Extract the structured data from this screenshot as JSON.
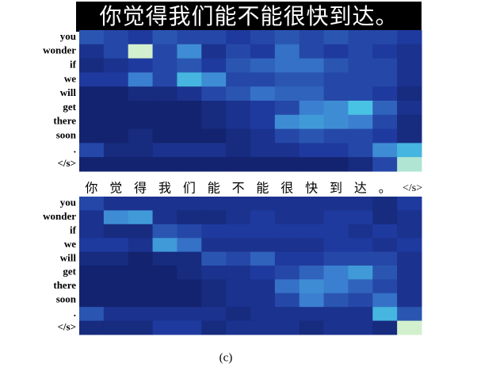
{
  "chart_data": [
    {
      "type": "heatmap",
      "title": "你觉得我们能不能很快到达。",
      "y_categories": [
        "you",
        "wonder",
        "if",
        "we",
        "will",
        "get",
        "there",
        "soon",
        ".",
        "</s>"
      ],
      "colormap": [
        "#0b1450",
        "#1f3a9e",
        "#3b7fd0",
        "#49c3e3",
        "#f4fbc8"
      ],
      "clim": [
        0,
        1
      ],
      "values": [
        [
          0.35,
          0.3,
          0.25,
          0.35,
          0.3,
          0.3,
          0.25,
          0.3,
          0.35,
          0.3,
          0.35,
          0.3,
          0.3,
          0.25
        ],
        [
          0.2,
          0.3,
          0.95,
          0.3,
          0.55,
          0.2,
          0.3,
          0.25,
          0.45,
          0.3,
          0.25,
          0.3,
          0.25,
          0.2
        ],
        [
          0.15,
          0.2,
          0.25,
          0.3,
          0.35,
          0.25,
          0.35,
          0.4,
          0.45,
          0.45,
          0.35,
          0.3,
          0.3,
          0.2
        ],
        [
          0.25,
          0.25,
          0.5,
          0.3,
          0.7,
          0.55,
          0.3,
          0.3,
          0.35,
          0.35,
          0.3,
          0.3,
          0.3,
          0.2
        ],
        [
          0.1,
          0.1,
          0.15,
          0.15,
          0.2,
          0.3,
          0.35,
          0.45,
          0.4,
          0.4,
          0.3,
          0.3,
          0.25,
          0.15
        ],
        [
          0.1,
          0.1,
          0.1,
          0.1,
          0.1,
          0.15,
          0.2,
          0.25,
          0.3,
          0.5,
          0.55,
          0.75,
          0.4,
          0.2
        ],
        [
          0.1,
          0.1,
          0.1,
          0.1,
          0.1,
          0.15,
          0.2,
          0.25,
          0.55,
          0.6,
          0.55,
          0.5,
          0.3,
          0.15
        ],
        [
          0.1,
          0.1,
          0.15,
          0.1,
          0.1,
          0.1,
          0.15,
          0.2,
          0.3,
          0.35,
          0.3,
          0.3,
          0.25,
          0.15
        ],
        [
          0.3,
          0.15,
          0.15,
          0.2,
          0.2,
          0.2,
          0.15,
          0.2,
          0.2,
          0.25,
          0.25,
          0.3,
          0.55,
          0.7
        ],
        [
          0.1,
          0.1,
          0.1,
          0.1,
          0.1,
          0.1,
          0.1,
          0.1,
          0.1,
          0.1,
          0.1,
          0.15,
          0.3,
          0.9
        ]
      ]
    },
    {
      "type": "heatmap",
      "x_categories": [
        "你",
        "觉",
        "得",
        "我",
        "们",
        "能",
        "不",
        "能",
        "很",
        "快",
        "到",
        "达",
        "。",
        "</s>"
      ],
      "y_categories": [
        "you",
        "wonder",
        "if",
        "we",
        "will",
        "get",
        "there",
        "soon",
        ".",
        "</s>"
      ],
      "colormap": [
        "#0b1450",
        "#1f3a9e",
        "#3b7fd0",
        "#49c3e3",
        "#f4fbc8"
      ],
      "clim": [
        0,
        1
      ],
      "values": [
        [
          0.3,
          0.2,
          0.2,
          0.2,
          0.2,
          0.2,
          0.2,
          0.2,
          0.2,
          0.2,
          0.2,
          0.2,
          0.15,
          0.25
        ],
        [
          0.2,
          0.55,
          0.6,
          0.2,
          0.15,
          0.15,
          0.2,
          0.25,
          0.2,
          0.2,
          0.25,
          0.25,
          0.15,
          0.2
        ],
        [
          0.2,
          0.15,
          0.15,
          0.35,
          0.3,
          0.25,
          0.25,
          0.25,
          0.25,
          0.25,
          0.25,
          0.2,
          0.25,
          0.2
        ],
        [
          0.25,
          0.25,
          0.2,
          0.6,
          0.45,
          0.2,
          0.2,
          0.2,
          0.2,
          0.2,
          0.25,
          0.25,
          0.2,
          0.25
        ],
        [
          0.15,
          0.15,
          0.1,
          0.15,
          0.15,
          0.35,
          0.3,
          0.4,
          0.25,
          0.25,
          0.3,
          0.3,
          0.3,
          0.2
        ],
        [
          0.1,
          0.1,
          0.1,
          0.1,
          0.15,
          0.2,
          0.2,
          0.25,
          0.3,
          0.4,
          0.5,
          0.6,
          0.35,
          0.2
        ],
        [
          0.1,
          0.1,
          0.1,
          0.1,
          0.1,
          0.15,
          0.2,
          0.2,
          0.45,
          0.55,
          0.5,
          0.4,
          0.3,
          0.2
        ],
        [
          0.1,
          0.1,
          0.1,
          0.1,
          0.1,
          0.15,
          0.2,
          0.2,
          0.3,
          0.5,
          0.35,
          0.3,
          0.45,
          0.2
        ],
        [
          0.35,
          0.2,
          0.2,
          0.2,
          0.2,
          0.2,
          0.15,
          0.2,
          0.2,
          0.2,
          0.2,
          0.2,
          0.7,
          0.35
        ],
        [
          0.15,
          0.15,
          0.15,
          0.25,
          0.25,
          0.15,
          0.2,
          0.2,
          0.2,
          0.15,
          0.2,
          0.2,
          0.15,
          0.95
        ]
      ]
    }
  ],
  "caption": "(c)"
}
